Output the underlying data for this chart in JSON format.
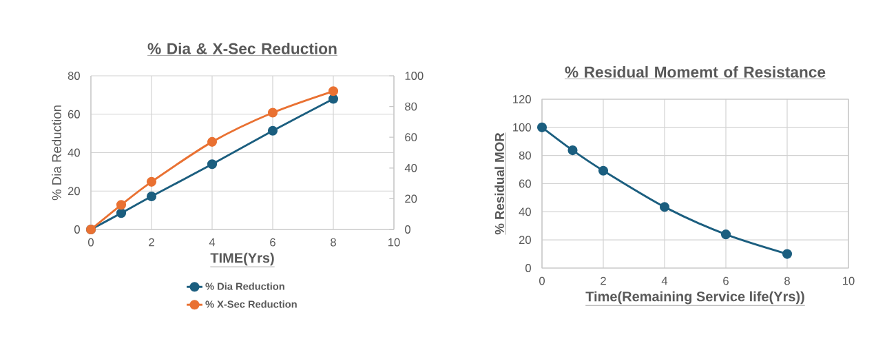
{
  "chart_data": [
    {
      "type": "line",
      "title": "% Dia & X-Sec Reduction",
      "xlabel": "TIME(Yrs)",
      "ylabel": "%  Dia Reduction",
      "x": [
        0,
        1,
        2,
        4,
        6,
        8
      ],
      "series": [
        {
          "name": "% Dia Reduction",
          "color": "#1b5e7f",
          "values": [
            0,
            8.5,
            17.2,
            34,
            51.4,
            68
          ]
        },
        {
          "name": "% X-Sec Reduction",
          "color": "#e97132",
          "values": [
            0,
            16,
            31,
            57,
            76,
            90
          ],
          "axis": "y2"
        }
      ],
      "xlim": [
        0,
        10
      ],
      "xticks": [
        0,
        2,
        4,
        6,
        8,
        10
      ],
      "ylim": [
        0,
        80
      ],
      "yticks": [
        0,
        20,
        40,
        60,
        80
      ],
      "y2lim": [
        0,
        100
      ],
      "y2ticks": [
        0,
        20,
        40,
        60,
        80,
        100
      ],
      "grid": true,
      "legend": "bottom",
      "marker": "circle"
    },
    {
      "type": "line",
      "title": "% Residual Momemt of Resistance",
      "xlabel": "Time(Remaining Service life(Yrs))",
      "ylabel": "% Residual MOR",
      "x": [
        0,
        1,
        2,
        4,
        6,
        8
      ],
      "series": [
        {
          "color": "#1b5e7f",
          "values": [
            100,
            83.7,
            69.2,
            43.4,
            23.9,
            10
          ]
        }
      ],
      "xlim": [
        0,
        10
      ],
      "xticks": [
        0,
        2,
        4,
        6,
        8,
        10
      ],
      "ylim": [
        0,
        120
      ],
      "yticks": [
        0,
        20,
        40,
        60,
        80,
        100,
        120
      ],
      "grid": true,
      "marker": "circle"
    }
  ]
}
